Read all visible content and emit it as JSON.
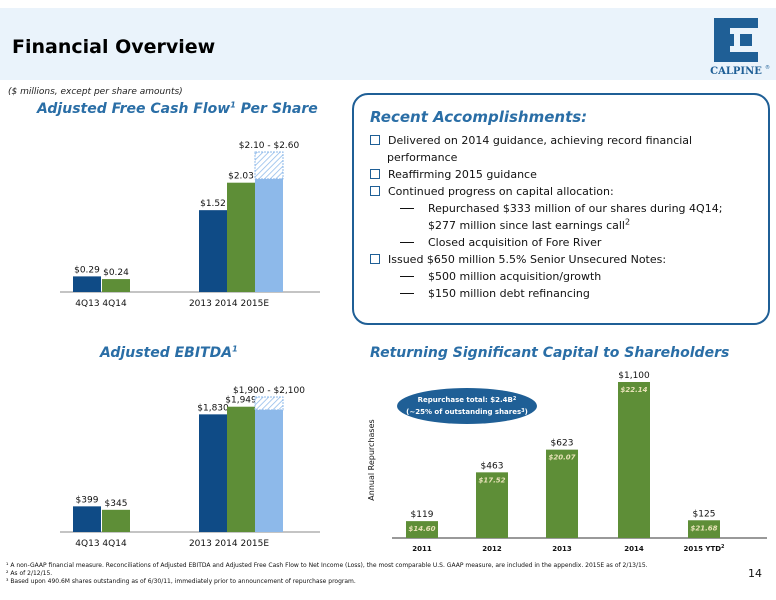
{
  "header": {
    "title": "Financial Overview",
    "subtitle": "($ millions, except per share amounts)",
    "logo_text": "CALPINE",
    "logo_tm": "®"
  },
  "fcf": {
    "title": "Adjusted Free Cash Flow",
    "title_sup": "1",
    "title_tail": " Per Share",
    "range_label": "$2.10 - $2.60",
    "group_labels": [
      "4Q13  4Q14",
      "2013   2014  2015E"
    ]
  },
  "ebitda": {
    "title": "Adjusted EBITDA",
    "title_sup": "1",
    "range_label": "$1,900 - $2,100",
    "group_labels": [
      "4Q13  4Q14",
      "2013   2014  2015E"
    ]
  },
  "accomplishments": {
    "title": "Recent Accomplishments:",
    "items": [
      {
        "text": "Delivered on 2014 guidance, achieving record financial",
        "level": 1,
        "cont": "performance"
      },
      {
        "text": "Reaffirming 2015 guidance",
        "level": 1
      },
      {
        "text": "Continued progress on capital allocation:",
        "level": 1
      },
      {
        "text": "Repurchased $333 million of our shares during 4Q14;",
        "level": 2,
        "cont": "$277 million since last earnings call",
        "cont_sup": "2"
      },
      {
        "text": "Closed acquisition of Fore River",
        "level": 2
      },
      {
        "text": "Issued $650 million 5.5% Senior Unsecured Notes:",
        "level": 1
      },
      {
        "text": "$500 million acquisition/growth",
        "level": 2
      },
      {
        "text": "$150 million debt refinancing",
        "level": 2
      }
    ]
  },
  "repurchase": {
    "title": "Returning Significant Capital to Shareholders",
    "ylabel": "Annual Repurchases",
    "callout_line1": "Repurchase total: $2.4B",
    "callout_sup": "2",
    "callout_line2": "(~25% of outstanding shares",
    "callout_sup2": "3",
    "callout_close": ")",
    "last_label_sup": "2"
  },
  "chart_data": [
    {
      "type": "bar",
      "title": "Adjusted Free Cash Flow Per Share",
      "categories": [
        "4Q13",
        "4Q14",
        "2013",
        "2014",
        "2015E"
      ],
      "values": [
        0.29,
        0.24,
        1.52,
        2.03,
        2.1
      ],
      "labels": [
        "$0.29",
        "$0.24",
        "$1.52",
        "$2.03",
        ""
      ],
      "range": [
        2.1,
        2.6
      ],
      "range_label": "$2.10 - $2.60",
      "ylim": [
        0,
        2.6
      ],
      "colors": [
        "#0f4b86",
        "#5e8e37",
        "#0f4b86",
        "#5e8e37",
        "#8db9ea"
      ]
    },
    {
      "type": "bar",
      "title": "Adjusted EBITDA",
      "categories": [
        "4Q13",
        "4Q14",
        "2013",
        "2014",
        "2015E"
      ],
      "values": [
        399,
        345,
        1830,
        1949,
        1900
      ],
      "labels": [
        "$399",
        "$345",
        "$1,830",
        "$1,949",
        ""
      ],
      "range": [
        1900,
        2100
      ],
      "range_label": "$1,900 - $2,100",
      "ylim": [
        0,
        2100
      ],
      "colors": [
        "#0f4b86",
        "#5e8e37",
        "#0f4b86",
        "#5e8e37",
        "#8db9ea"
      ]
    },
    {
      "type": "bar",
      "title": "Returning Significant Capital to Shareholders",
      "ylabel": "Annual Repurchases",
      "categories": [
        "2011",
        "2012",
        "2013",
        "2014",
        "2015 YTD"
      ],
      "values": [
        119,
        463,
        623,
        1100,
        125
      ],
      "labels": [
        "$119",
        "$463",
        "$623",
        "$1,100",
        "$125"
      ],
      "avg_prices": [
        "$14.60",
        "$17.52",
        "$20.07",
        "$22.14",
        "$21.68"
      ],
      "ylim": [
        0,
        1100
      ],
      "color": "#5e8e37"
    }
  ],
  "footnotes": [
    "¹ A non-GAAP financial measure.  Reconciliations of Adjusted EBITDA and Adjusted Free Cash Flow to Net Income (Loss), the most comparable U.S. GAAP measure, are included in the appendix.  2015E as of 2/13/15.",
    "² As of 2/12/15.",
    "³ Based upon 490.6M shares outstanding as of 6/30/11, immediately prior to announcement of repurchase program."
  ],
  "page_number": "14"
}
